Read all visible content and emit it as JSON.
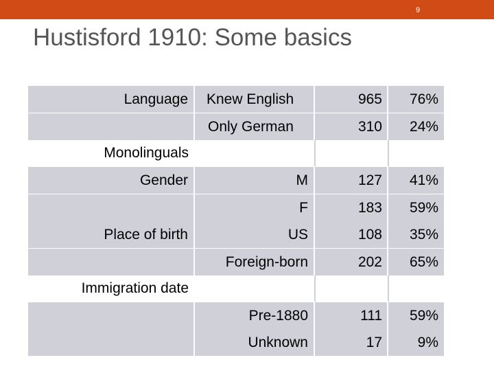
{
  "slide": {
    "number": "9",
    "title": "Hustisford 1910: Some basics"
  },
  "table": {
    "rows": [
      {
        "c1": "Language",
        "c2": "Knew English",
        "c3": "965",
        "c4": "76%"
      },
      {
        "c1": "",
        "c2": "Only German",
        "c3": "310",
        "c4": "24%"
      },
      {
        "section": "Monolinguals"
      },
      {
        "c1": "Gender",
        "c2": "M",
        "c3": "127",
        "c4": "41%"
      },
      {
        "c1": "",
        "c2": "F",
        "c3": "183",
        "c4": "59%"
      },
      {
        "c1": "Place of birth",
        "c2": "US",
        "c3": "108",
        "c4": "35%"
      },
      {
        "c1": "",
        "c2": "Foreign-born",
        "c3": "202",
        "c4": "65%"
      },
      {
        "section": "Immigration date"
      },
      {
        "c1": "",
        "c2": "Pre-1880",
        "c3": "111",
        "c4": "59%"
      },
      {
        "c1": "",
        "c2": "Unknown",
        "c3": "17",
        "c4": "9%"
      }
    ]
  },
  "colors": {
    "accent_bar": "#d14b17",
    "title_text": "#555555",
    "cell_shading": "#cfd0d8"
  }
}
